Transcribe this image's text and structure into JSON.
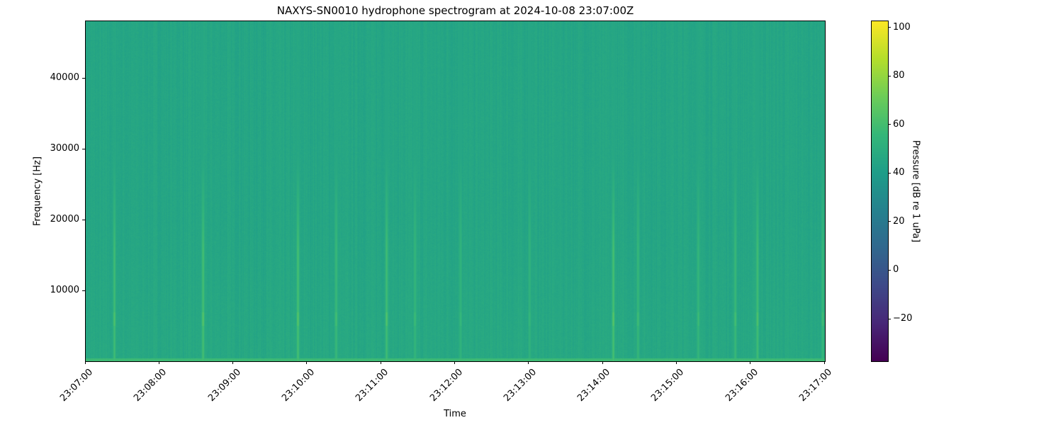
{
  "chart_data": {
    "type": "heatmap",
    "title": "NAXYS-SN0010 hydrophone spectrogram at 2024-10-08 23:07:00Z",
    "xlabel": "Time",
    "ylabel": "Frequency [Hz]",
    "colorbar_label": "Pressure [dB re 1 uPa]",
    "colormap": "viridis",
    "x_ticks": [
      "23:07:00",
      "23:08:00",
      "23:09:00",
      "23:10:00",
      "23:11:00",
      "23:12:00",
      "23:13:00",
      "23:14:00",
      "23:15:00",
      "23:16:00",
      "23:17:00"
    ],
    "xlim": [
      "23:07:00",
      "23:17:00"
    ],
    "y_ticks": [
      10000,
      20000,
      30000,
      40000
    ],
    "ylim": [
      0,
      48000
    ],
    "colorbar_ticks": [
      -20,
      0,
      20,
      40,
      60,
      80,
      100
    ],
    "clim": [
      -37.5,
      102.5
    ],
    "background_level_db": 45,
    "low_frequency_band": {
      "max_hz": 500,
      "level_db": 58
    },
    "transient_events": [
      {
        "time": "23:07:23",
        "level_db": 60
      },
      {
        "time": "23:08:35",
        "level_db": 62
      },
      {
        "time": "23:09:52",
        "level_db": 62
      },
      {
        "time": "23:10:23",
        "level_db": 58
      },
      {
        "time": "23:11:04",
        "level_db": 61
      },
      {
        "time": "23:11:27",
        "level_db": 56
      },
      {
        "time": "23:12:04",
        "level_db": 55
      },
      {
        "time": "23:13:00",
        "level_db": 54
      },
      {
        "time": "23:14:08",
        "level_db": 62
      },
      {
        "time": "23:14:28",
        "level_db": 57
      },
      {
        "time": "23:15:17",
        "level_db": 56
      },
      {
        "time": "23:15:47",
        "level_db": 58
      },
      {
        "time": "23:16:05",
        "level_db": 61
      },
      {
        "time": "23:16:58",
        "level_db": 58
      }
    ]
  }
}
